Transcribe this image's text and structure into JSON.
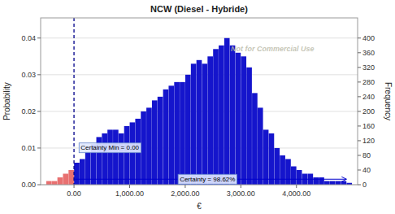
{
  "chart_data": {
    "type": "histogram",
    "title": "NCW (Diesel - Hybride)",
    "xlabel": "€",
    "ylabel": "Probability",
    "y2label": "Frequency",
    "xlim": [
      -600,
      5100
    ],
    "ylim": [
      0,
      0.0455
    ],
    "y2lim": [
      0,
      455
    ],
    "xticks": [
      {
        "value": 0,
        "label": "0.00"
      },
      {
        "value": 1000,
        "label": "1,000.00"
      },
      {
        "value": 2000,
        "label": "2,000.00"
      },
      {
        "value": 3000,
        "label": "3,000.00"
      },
      {
        "value": 4000,
        "label": "4,000.00"
      }
    ],
    "yticks": [
      {
        "value": 0,
        "label": "0.00"
      },
      0.01,
      0.02,
      0.03,
      0.04
    ],
    "y2ticks": [
      0,
      40,
      80,
      120,
      160,
      200,
      240,
      280,
      320,
      360,
      400
    ],
    "grid": true,
    "series": [
      {
        "color": "#1515CC",
        "bins": [
          0,
          100,
          200,
          300,
          400,
          500,
          600,
          700,
          800,
          900,
          1000,
          1100,
          1200,
          1300,
          1400,
          1500,
          1600,
          1700,
          1800,
          1900,
          2000,
          2100,
          2200,
          2300,
          2400,
          2500,
          2600,
          2700,
          2800,
          2900,
          3000,
          3100,
          3200,
          3300,
          3400,
          3500,
          3600,
          3700,
          3800,
          3900,
          4000,
          4100,
          4200,
          4300,
          4400,
          4500,
          4600,
          4700,
          4800,
          4900,
          5000
        ],
        "values": [
          0.006,
          0.007,
          0.009,
          0.011,
          0.013,
          0.014,
          0.015,
          0.015,
          0.014,
          0.016,
          0.017,
          0.018,
          0.02,
          0.021,
          0.023,
          0.024,
          0.026,
          0.027,
          0.028,
          0.028,
          0.03,
          0.033,
          0.034,
          0.033,
          0.035,
          0.037,
          0.038,
          0.04,
          0.038,
          0.036,
          0.035,
          0.032,
          0.025,
          0.021,
          0.015,
          0.014,
          0.01,
          0.008,
          0.007,
          0.005,
          0.004,
          0.003,
          0.003,
          0.002,
          0.002,
          0.001,
          0.001,
          0.001,
          0.001,
          0.0005
        ]
      },
      {
        "color": "#E87070",
        "bins": [
          -500,
          -400,
          -300,
          -200,
          -100,
          0
        ],
        "values": [
          0.001,
          0.001,
          0.002,
          0.003,
          0.004
        ]
      }
    ],
    "reference_line": {
      "x": 0,
      "color": "#00008B"
    },
    "annotations": [
      {
        "text": "Certainty Min = 0.00",
        "x": 120,
        "y": 0.0095
      },
      {
        "text": "Certainty = 98.62%",
        "x": 2400,
        "y": 0.0015,
        "arrow_x": [
          10,
          4900
        ],
        "color": "#0000CC"
      },
      {
        "text": "Not for Commercial Use"
      }
    ]
  }
}
